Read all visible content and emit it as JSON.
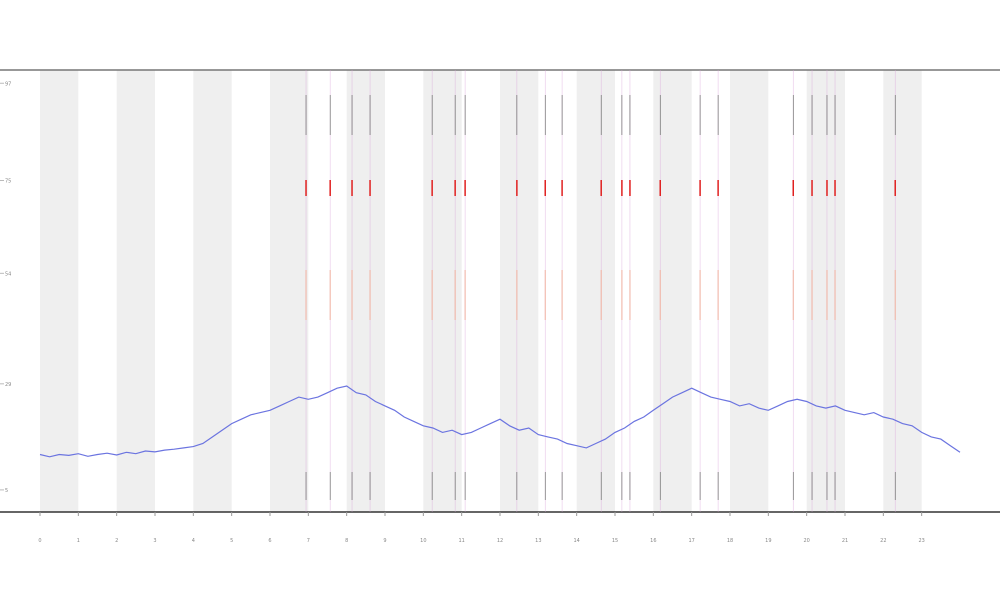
{
  "chart_data": {
    "type": "line",
    "x": [
      0,
      0.25,
      0.5,
      0.75,
      1,
      1.25,
      1.5,
      1.75,
      2,
      2.25,
      2.5,
      2.75,
      3,
      3.25,
      3.5,
      3.75,
      4,
      4.25,
      4.5,
      4.75,
      5,
      5.25,
      5.5,
      5.75,
      6,
      6.25,
      6.5,
      6.75,
      7,
      7.25,
      7.5,
      7.75,
      8,
      8.25,
      8.5,
      8.75,
      9,
      9.25,
      9.5,
      9.75,
      10,
      10.25,
      10.5,
      10.75,
      11,
      11.25,
      11.5,
      11.75,
      12,
      12.25,
      12.5,
      12.75,
      13,
      13.25,
      13.5,
      13.75,
      14,
      14.25,
      14.5,
      14.75,
      15,
      15.25,
      15.5,
      15.75,
      16,
      16.25,
      16.5,
      16.75,
      17,
      17.25,
      17.5,
      17.75,
      18,
      18.25,
      18.5,
      18.75,
      19,
      19.25,
      19.5,
      19.75,
      20,
      20.25,
      20.5,
      20.75,
      21,
      21.25,
      21.5,
      21.75,
      22,
      22.25,
      22.5,
      22.75,
      23,
      23.25,
      23.5,
      23.75,
      24
    ],
    "series": [
      {
        "color": "#6b74e0",
        "values": [
          13,
          12.5,
          13,
          12.8,
          13.2,
          12.6,
          13,
          13.3,
          12.9,
          13.5,
          13.2,
          13.8,
          13.6,
          14,
          14.2,
          14.5,
          14.8,
          15.5,
          17,
          18.5,
          20,
          21,
          22,
          22.5,
          23,
          24,
          25,
          26,
          25.5,
          26,
          27,
          28,
          28.5,
          27,
          26.5,
          25,
          24,
          23,
          21.5,
          20.5,
          19.5,
          19,
          18,
          18.5,
          17.5,
          18,
          19,
          20,
          21,
          19.5,
          18.5,
          19,
          17.5,
          17,
          16.5,
          15.5,
          15,
          14.5,
          15.5,
          16.5,
          18,
          19,
          20.5,
          21.5,
          23,
          24.5,
          26,
          27,
          28,
          27,
          26,
          25.5,
          25,
          24,
          24.5,
          23.5,
          23,
          24,
          25,
          25.5,
          25,
          24,
          23.5,
          24,
          23,
          22.5,
          22,
          22.5,
          21.5,
          21,
          20,
          19.5,
          18,
          17,
          16.5,
          15,
          13.5
        ]
      }
    ],
    "events": [
      6.94,
      7.57,
      8.14,
      8.61,
      10.23,
      10.83,
      11.09,
      12.44,
      13.18,
      13.62,
      14.64,
      15.18,
      15.39,
      16.18,
      17.22,
      17.69,
      19.65,
      20.14,
      20.53,
      20.74,
      22.31
    ],
    "event_color": "#e02020",
    "xlim": [
      0,
      24
    ],
    "xticks": [
      0,
      1,
      2,
      3,
      4,
      5,
      6,
      7,
      8,
      9,
      10,
      11,
      12,
      13,
      14,
      15,
      16,
      17,
      18,
      19,
      20,
      21,
      22,
      23
    ],
    "ylim": [
      0,
      100
    ],
    "yticks": [
      5,
      29,
      54,
      75,
      97
    ]
  }
}
